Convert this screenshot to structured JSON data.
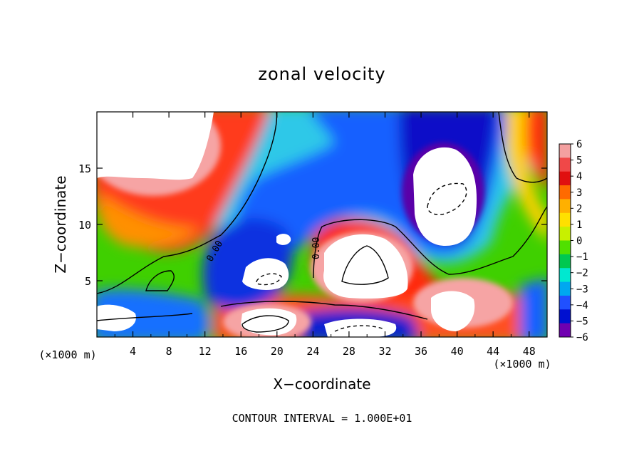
{
  "chart_data": {
    "type": "heatmap",
    "title": "zonal velocity",
    "xlabel": "X−coordinate",
    "ylabel": "Z−coordinate",
    "x_unit_label": "(×1000 m)",
    "z_unit_label": "(×1000 m)",
    "footer": "CONTOUR INTERVAL = 1.000E+01",
    "xlim": [
      0,
      50
    ],
    "ylim": [
      0,
      20
    ],
    "x_ticks": [
      "4",
      "8",
      "12",
      "16",
      "20",
      "24",
      "28",
      "32",
      "36",
      "40",
      "44",
      "48"
    ],
    "y_ticks": [
      "5",
      "10",
      "15"
    ],
    "colorbar": {
      "range": [
        -6,
        6
      ],
      "labels": [
        "6",
        "5",
        "4",
        "3",
        "2",
        "1",
        "0",
        "−1",
        "−2",
        "−3",
        "−4",
        "−5",
        "−6"
      ],
      "colors": [
        "#f4a0a0",
        "#f04848",
        "#e01010",
        "#ff6a00",
        "#ffb000",
        "#ffe000",
        "#c8f000",
        "#50e000",
        "#00c850",
        "#00e8d0",
        "#00a8f0",
        "#2050ff",
        "#0010d0",
        "#7000b0"
      ],
      "over_color": "#ffffff",
      "under_color": "#ffffff"
    },
    "contour_labels": [
      "0.00",
      "0.00"
    ]
  }
}
